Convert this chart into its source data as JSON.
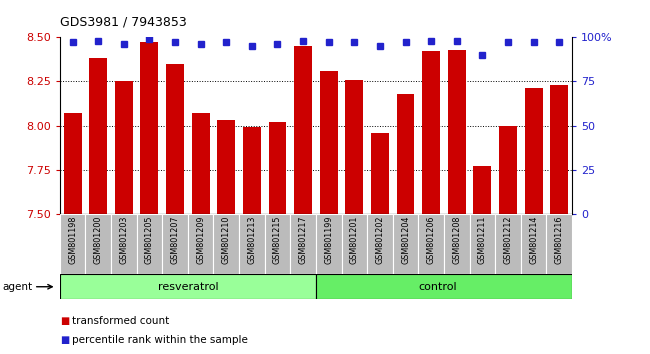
{
  "title": "GDS3981 / 7943853",
  "samples": [
    "GSM801198",
    "GSM801200",
    "GSM801203",
    "GSM801205",
    "GSM801207",
    "GSM801209",
    "GSM801210",
    "GSM801213",
    "GSM801215",
    "GSM801217",
    "GSM801199",
    "GSM801201",
    "GSM801202",
    "GSM801204",
    "GSM801206",
    "GSM801208",
    "GSM801211",
    "GSM801212",
    "GSM801214",
    "GSM801216"
  ],
  "red_values": [
    8.07,
    8.38,
    8.25,
    8.47,
    8.35,
    8.07,
    8.03,
    7.99,
    8.02,
    8.45,
    8.31,
    8.26,
    7.96,
    8.18,
    8.42,
    8.43,
    7.77,
    8.0,
    8.21,
    8.23
  ],
  "blue_values": [
    97,
    98,
    96,
    99,
    97,
    96,
    97,
    95,
    96,
    98,
    97,
    97,
    95,
    97,
    98,
    98,
    90,
    97,
    97,
    97
  ],
  "resv_count": 10,
  "ctrl_count": 10,
  "ylim_left": [
    7.5,
    8.5
  ],
  "ylim_right": [
    0,
    100
  ],
  "yticks_left": [
    7.5,
    7.75,
    8.0,
    8.25,
    8.5
  ],
  "yticks_right": [
    0,
    25,
    50,
    75,
    100
  ],
  "right_ytick_labels": [
    "0",
    "25",
    "50",
    "75",
    "100%"
  ],
  "bar_color": "#CC0000",
  "dot_color": "#2222CC",
  "xtick_bg": "#BBBBBB",
  "resveratrol_color": "#99FF99",
  "control_color": "#66EE66",
  "legend_red": "transformed count",
  "legend_blue": "percentile rank within the sample",
  "agent_label": "agent",
  "resveratrol_label": "resveratrol",
  "control_label": "control"
}
